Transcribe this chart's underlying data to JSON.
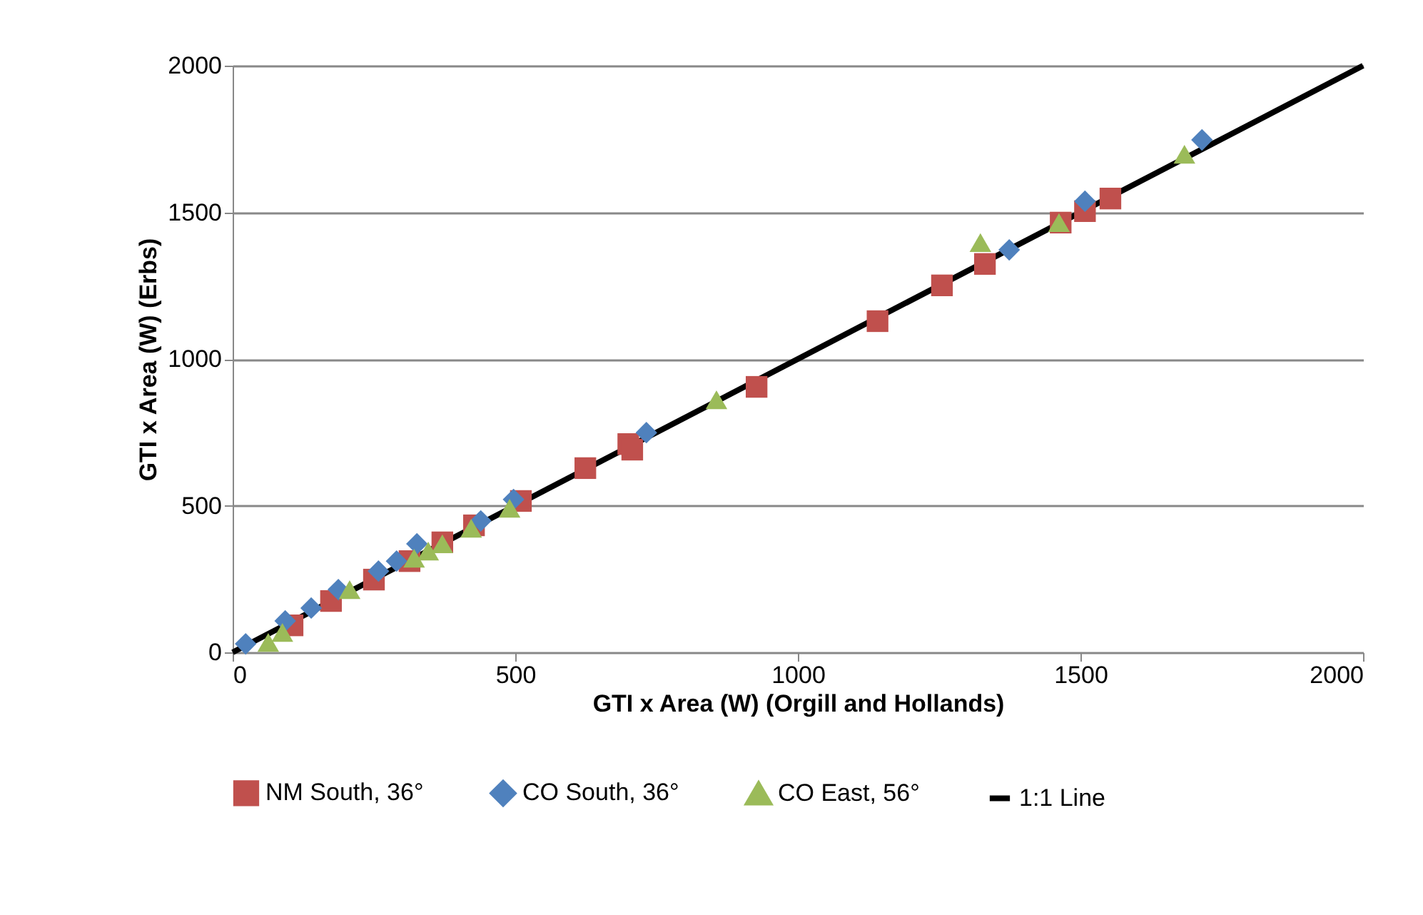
{
  "chart_data": {
    "type": "scatter",
    "xlabel": "GTI x Area (W) (Orgill and Hollands)",
    "ylabel": "GTI x Area (W)  (Erbs)",
    "xlim": [
      0,
      2000
    ],
    "ylim": [
      0,
      2000
    ],
    "xticks": [
      0,
      500,
      1000,
      1500,
      2000
    ],
    "yticks": [
      0,
      500,
      1000,
      1500,
      2000
    ],
    "grid": "y",
    "legend": "bottom",
    "series": [
      {
        "name": "NM South, 36°",
        "color": "#c0504d",
        "marker": "square",
        "x": [
          106,
          174,
          250,
          313,
          371,
          427,
          510,
          624,
          700,
          707,
          927,
          1141,
          1255,
          1331,
          1465,
          1508,
          1553
        ],
        "values": [
          92,
          175,
          248,
          311,
          375,
          433,
          516,
          628,
          710,
          691,
          905,
          1129,
          1251,
          1324,
          1465,
          1504,
          1547
        ]
      },
      {
        "name": "CO South, 36°",
        "color": "#4f81bd",
        "marker": "diamond",
        "x": [
          23,
          93,
          139,
          187,
          258,
          290,
          326,
          439,
          497,
          732,
          1374,
          1508,
          1715
        ],
        "values": [
          29,
          107,
          151,
          214,
          277,
          311,
          370,
          448,
          521,
          749,
          1372,
          1538,
          1747
        ]
      },
      {
        "name": "CO East, 56°",
        "color": "#9bbb59",
        "marker": "triangle",
        "x": [
          63,
          88,
          207,
          321,
          346,
          371,
          422,
          490,
          856,
          1323,
          1462,
          1684
        ],
        "values": [
          34,
          68,
          214,
          321,
          345,
          370,
          423,
          491,
          861,
          1397,
          1465,
          1698
        ]
      },
      {
        "name": "1:1 Line",
        "type": "line",
        "color": "#000000",
        "marker": "none",
        "x": [
          0,
          2000
        ],
        "values": [
          0,
          2000
        ]
      }
    ]
  }
}
